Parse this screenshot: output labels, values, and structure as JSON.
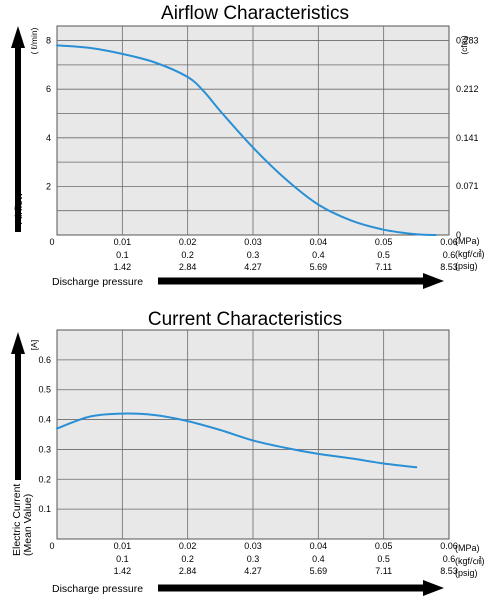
{
  "chart_data": [
    {
      "type": "line",
      "title": "Airflow Characteristics",
      "ylabel": "Airflow",
      "ylabel_unit": "( ℓ/min)",
      "secondary_ylabel_unit": "(cfm)",
      "xlabel": "Discharge pressure",
      "xlim": [
        0,
        0.06
      ],
      "ylim": [
        0,
        8.6
      ],
      "grid": true,
      "x_ticks": [
        {
          "x": 0,
          "mpa": "0",
          "kgf": "",
          "psig": ""
        },
        {
          "x": 0.01,
          "mpa": "0.01",
          "kgf": "0.1",
          "psig": "1.42"
        },
        {
          "x": 0.02,
          "mpa": "0.02",
          "kgf": "0.2",
          "psig": "2.84"
        },
        {
          "x": 0.03,
          "mpa": "0.03",
          "kgf": "0.3",
          "psig": "4.27"
        },
        {
          "x": 0.04,
          "mpa": "0.04",
          "kgf": "0.4",
          "psig": "5.69"
        },
        {
          "x": 0.05,
          "mpa": "0.05",
          "kgf": "0.5",
          "psig": "7.11"
        },
        {
          "x": 0.06,
          "mpa": "0.06",
          "kgf": "0.6",
          "psig": "8.53"
        }
      ],
      "x_units": {
        "mpa": "(MPa)",
        "kgf": "(kgf/㎠)",
        "psig": "(psig)"
      },
      "y_ticks": [
        2,
        4,
        6,
        8
      ],
      "secondary_y_ticks": [
        {
          "y": 0,
          "label": "0"
        },
        {
          "y": 2.01,
          "label": "0.071"
        },
        {
          "y": 3.99,
          "label": "0.141"
        },
        {
          "y": 6.0,
          "label": "0.212"
        },
        {
          "y": 8.0,
          "label": "0.283"
        }
      ],
      "series": [
        {
          "color": "#2a8fd4",
          "x": [
            0,
            0.005,
            0.01,
            0.015,
            0.02,
            0.0225,
            0.025,
            0.03,
            0.035,
            0.04,
            0.045,
            0.05,
            0.055,
            0.058
          ],
          "y": [
            7.8,
            7.7,
            7.45,
            7.1,
            6.5,
            5.9,
            5.1,
            3.6,
            2.3,
            1.25,
            0.6,
            0.22,
            0.03,
            0
          ]
        }
      ]
    },
    {
      "type": "line",
      "title": "Current Characteristics",
      "ylabel": "Electric Current (Mean Value)",
      "ylabel_line1": "Electric Current",
      "ylabel_line2": "(Mean Value)",
      "ylabel_unit": "[A]",
      "xlabel": "Discharge pressure",
      "xlim": [
        0,
        0.06
      ],
      "ylim": [
        0,
        0.7
      ],
      "grid": true,
      "x_ticks": [
        {
          "x": 0,
          "mpa": "0",
          "kgf": "",
          "psig": ""
        },
        {
          "x": 0.01,
          "mpa": "0.01",
          "kgf": "0.1",
          "psig": "1.42"
        },
        {
          "x": 0.02,
          "mpa": "0.02",
          "kgf": "0.2",
          "psig": "2.84"
        },
        {
          "x": 0.03,
          "mpa": "0.03",
          "kgf": "0.3",
          "psig": "4.27"
        },
        {
          "x": 0.04,
          "mpa": "0.04",
          "kgf": "0.4",
          "psig": "5.69"
        },
        {
          "x": 0.05,
          "mpa": "0.05",
          "kgf": "0.5",
          "psig": "7.11"
        },
        {
          "x": 0.06,
          "mpa": "0.06",
          "kgf": "0.6",
          "psig": "8.53"
        }
      ],
      "x_units": {
        "mpa": "(MPa)",
        "kgf": "(kgf/㎠)",
        "psig": "(psig)"
      },
      "y_ticks": [
        0.1,
        0.2,
        0.3,
        0.4,
        0.5,
        0.6
      ],
      "series": [
        {
          "color": "#2a8fd4",
          "x": [
            0,
            0.005,
            0.01,
            0.015,
            0.02,
            0.025,
            0.03,
            0.035,
            0.04,
            0.045,
            0.05,
            0.055
          ],
          "y": [
            0.37,
            0.41,
            0.42,
            0.415,
            0.395,
            0.365,
            0.33,
            0.305,
            0.285,
            0.27,
            0.253,
            0.24
          ]
        }
      ]
    }
  ]
}
